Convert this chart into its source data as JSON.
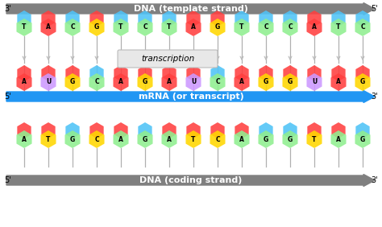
{
  "bg_color": "#ffffff",
  "template_strand": [
    "T",
    "A",
    "C",
    "G",
    "T",
    "C",
    "T",
    "A",
    "G",
    "T",
    "C",
    "C",
    "A",
    "T",
    "C"
  ],
  "mrna_strand": [
    "A",
    "U",
    "G",
    "C",
    "A",
    "G",
    "A",
    "U",
    "C",
    "A",
    "G",
    "G",
    "U",
    "A",
    "G"
  ],
  "coding_strand": [
    "A",
    "T",
    "G",
    "C",
    "A",
    "G",
    "A",
    "T",
    "C",
    "A",
    "G",
    "G",
    "T",
    "A",
    "G"
  ],
  "nuc_colors": {
    "T": "#90ee90",
    "A": "#ff4040",
    "C": "#90ee90",
    "G": "#ffd700",
    "U": "#cc99ff"
  },
  "pair_top_colors_template": {
    "T": "#4fc3f7",
    "A": "#ff4040",
    "C": "#4fc3f7",
    "G": "#ff4040"
  },
  "pair_top_colors_mrna": {
    "A": "#ff4040",
    "U": "#ff4040",
    "G": "#ff4040",
    "C": "#4fc3f7"
  },
  "coding_top_colors": {
    "A": "#ff4040",
    "T": "#ff4040",
    "G": "#4fc3f7",
    "C": "#ff4040"
  },
  "coding_bot_colors": {
    "A": "#90ee90",
    "T": "#ffd700",
    "G": "#90ee90",
    "C": "#ffd700"
  },
  "gray_arrow": "#808080",
  "blue_arrow": "#2196f3",
  "label_template": "DNA (template strand)",
  "label_mrna": "mRNA (or transcript)",
  "label_coding": "DNA (coding strand)",
  "label_transcription": "transcription"
}
